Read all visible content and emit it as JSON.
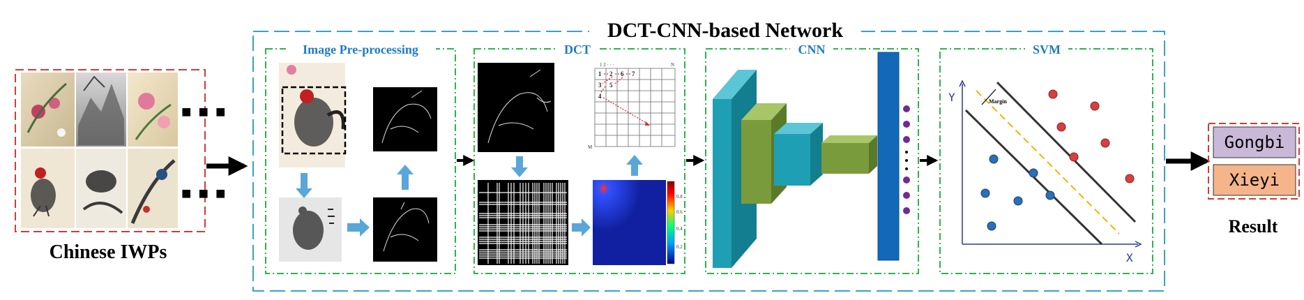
{
  "title": "DCT-CNN-based Network",
  "input": {
    "label": "Chinese IWPs",
    "ellipsis_top": "■ ■ ■",
    "ellipsis_bottom": "■ ■ ■"
  },
  "stages": {
    "preprocessing": {
      "label": "Image Pre-processing"
    },
    "dct": {
      "label": "DCT",
      "matrix_top_labels": "1    2    · · ·",
      "matrix_n": "N",
      "matrix_m": "M",
      "matrix_cells": [
        "1",
        "2",
        "6",
        "7",
        "3",
        "5",
        "4"
      ],
      "colorbar_ticks": [
        "0.8",
        "0.6",
        "0.4",
        "0.2"
      ]
    },
    "cnn": {
      "label": "CNN"
    },
    "svm": {
      "label": "SVM",
      "y_axis": "Y",
      "x_axis": "X",
      "margin_label": "Margin"
    }
  },
  "outputs": {
    "classes": [
      "Gongbi",
      "Xieyi"
    ],
    "result_label": "Result"
  },
  "colors": {
    "outer_border": "#3aa0c8",
    "stage_border": "#2db34a",
    "stage_title": "#1f7bc4",
    "input_border": "#d23a3a",
    "arrow_blue": "#5aa6d9",
    "cnn_teal": "#1e9fb3",
    "cnn_green": "#7a9b3c",
    "fc_blue": "#1368b8",
    "dots_purple": "#6f2c91",
    "gongbi_fill": "#c9b8d8",
    "xieyi_fill": "#f5b48a",
    "red_point": "#d64040",
    "blue_point": "#2a6fb8",
    "margin_dashed": "#f0b400"
  }
}
